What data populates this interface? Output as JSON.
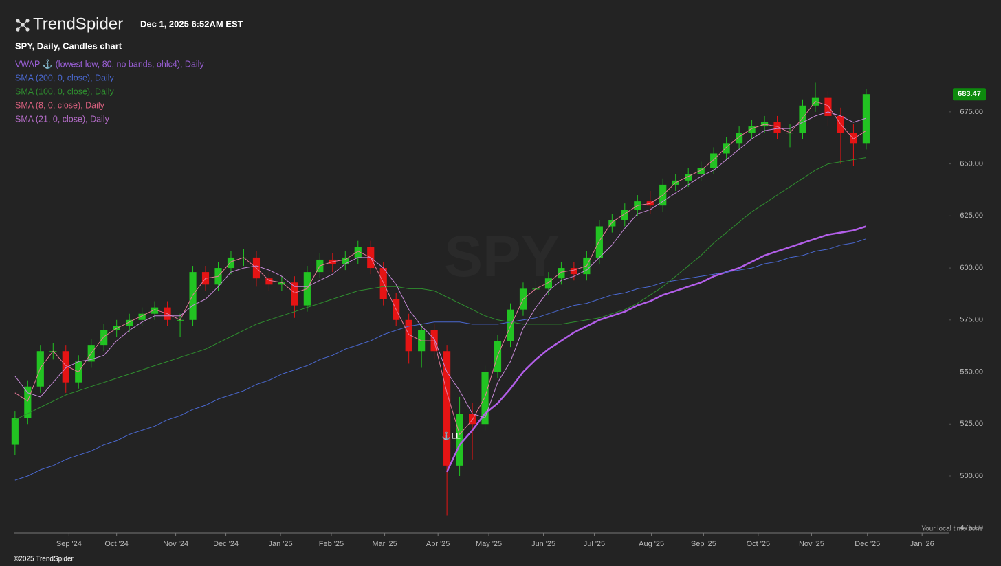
{
  "header": {
    "logo": "TrendSpider",
    "timestamp": "Dec 1, 2025 6:52AM EST"
  },
  "footer": {
    "timezone_note": "Your local time zone",
    "copyright": "©2025 TrendSpider"
  },
  "chart_data": {
    "type": "candlestick",
    "title": "SPY, Daily, Candles chart",
    "watermark": "SPY",
    "categories": [
      null,
      null,
      null,
      null,
      null,
      null,
      null,
      null,
      null,
      null,
      null,
      null,
      null,
      null,
      null,
      null,
      null,
      null,
      null,
      null,
      null,
      null,
      null,
      null,
      null,
      null,
      null,
      null,
      null,
      null,
      null,
      null,
      null,
      null,
      null,
      null,
      null,
      null,
      null,
      null,
      null,
      null,
      null,
      null,
      null,
      null,
      null,
      null,
      null,
      null,
      null,
      null,
      null,
      null,
      null,
      null,
      null,
      null,
      null,
      null,
      null,
      null,
      null,
      null,
      null,
      null,
      null,
      null
    ],
    "open": [
      515,
      528,
      543,
      560,
      560,
      545,
      555,
      563,
      570,
      572,
      575,
      578,
      581,
      575,
      575,
      598,
      592,
      600,
      605,
      605,
      595,
      592,
      593,
      582,
      598,
      604,
      602,
      605,
      610,
      600,
      585,
      575,
      560,
      570,
      560,
      505,
      530,
      525,
      550,
      565,
      580,
      590,
      590,
      595,
      600,
      597,
      605,
      620,
      623,
      628,
      632,
      630,
      640,
      642,
      645,
      648,
      655,
      660,
      665,
      668,
      670,
      665,
      665,
      678,
      682,
      673,
      665,
      660
    ],
    "high": [
      531,
      546,
      563,
      564,
      563,
      558,
      566,
      573,
      575,
      578,
      581,
      584,
      584,
      578,
      601,
      601,
      603,
      608,
      609,
      608,
      598,
      596,
      596,
      601,
      607,
      607,
      608,
      613,
      613,
      603,
      588,
      578,
      573,
      573,
      563,
      538,
      535,
      553,
      568,
      583,
      593,
      594,
      598,
      603,
      603,
      608,
      623,
      626,
      631,
      635,
      637,
      643,
      645,
      648,
      651,
      658,
      663,
      668,
      671,
      673,
      673,
      669,
      681,
      689,
      685,
      677,
      669,
      686
    ],
    "low": [
      510,
      525,
      540,
      556,
      540,
      542,
      552,
      560,
      567,
      569,
      572,
      575,
      572,
      567,
      572,
      589,
      589,
      597,
      601,
      591,
      589,
      589,
      576,
      579,
      595,
      598,
      599,
      602,
      597,
      582,
      572,
      554,
      552,
      556,
      481,
      500,
      508,
      522,
      547,
      562,
      577,
      587,
      587,
      592,
      594,
      594,
      602,
      617,
      620,
      625,
      626,
      627,
      637,
      639,
      642,
      645,
      652,
      657,
      662,
      665,
      662,
      658,
      662,
      675,
      668,
      650,
      649,
      657
    ],
    "close": [
      528,
      543,
      560,
      560,
      545,
      555,
      563,
      570,
      572,
      575,
      578,
      581,
      575,
      575,
      598,
      592,
      600,
      605,
      605,
      595,
      592,
      593,
      582,
      598,
      604,
      602,
      605,
      610,
      600,
      585,
      575,
      560,
      570,
      560,
      505,
      530,
      525,
      550,
      565,
      580,
      590,
      590,
      595,
      600,
      597,
      605,
      620,
      623,
      628,
      632,
      630,
      640,
      642,
      645,
      648,
      655,
      660,
      665,
      668,
      670,
      665,
      665,
      678,
      682,
      673,
      665,
      660,
      683.47
    ],
    "up_color": "#22c322",
    "down_color": "#e51414",
    "last_price_color": "#0d8a0d",
    "series": [
      {
        "name": "VWAP ⚓ (lowest low, 80, no bands, ohlc4), Daily",
        "color": "#b25ee8",
        "legend_color": "#9a5fd6",
        "line_width": 2.5,
        "values": [
          null,
          null,
          null,
          null,
          null,
          null,
          null,
          null,
          null,
          null,
          null,
          null,
          null,
          null,
          null,
          null,
          null,
          null,
          null,
          null,
          null,
          null,
          null,
          null,
          null,
          null,
          null,
          null,
          null,
          null,
          null,
          null,
          null,
          null,
          502,
          515,
          522,
          530,
          535,
          542,
          550,
          556,
          561,
          565,
          569,
          572,
          575,
          577,
          579,
          582,
          584,
          587,
          589,
          591,
          593,
          596,
          598,
          600,
          603,
          606,
          608,
          610,
          612,
          614,
          616,
          617,
          618,
          620
        ]
      },
      {
        "name": "SMA (200, 0, close), Daily",
        "color": "#4a68d0",
        "legend_color": "#4a68d0",
        "line_width": 1,
        "values": [
          498,
          500,
          503,
          505,
          508,
          510,
          512,
          515,
          517,
          520,
          522,
          524,
          527,
          529,
          532,
          534,
          537,
          539,
          541,
          544,
          546,
          549,
          551,
          553,
          556,
          558,
          561,
          563,
          565,
          568,
          570,
          572,
          573,
          574,
          574,
          574,
          573,
          573,
          573,
          574,
          575,
          576,
          578,
          580,
          582,
          583,
          585,
          587,
          588,
          590,
          591,
          593,
          594,
          595,
          596,
          597,
          598,
          599,
          600,
          602,
          603,
          605,
          606,
          608,
          609,
          611,
          612,
          614
        ]
      },
      {
        "name": "SMA (100, 0, close), Daily",
        "color": "#2f8f2f",
        "legend_color": "#2f8f2f",
        "line_width": 1,
        "values": [
          527,
          530,
          533,
          536,
          539,
          541,
          543,
          545,
          547,
          549,
          551,
          553,
          555,
          557,
          559,
          561,
          564,
          567,
          570,
          573,
          575,
          577,
          579,
          581,
          583,
          585,
          587,
          589,
          590,
          591,
          591,
          590,
          590,
          589,
          586,
          583,
          580,
          577,
          575,
          574,
          573,
          573,
          573,
          573,
          574,
          575,
          576,
          578,
          580,
          583,
          587,
          591,
          596,
          601,
          606,
          612,
          617,
          622,
          627,
          631,
          635,
          639,
          643,
          647,
          650,
          651,
          652,
          653
        ]
      },
      {
        "name": "SMA (8, 0, close), Daily",
        "color": "#e8799a",
        "legend_color": "#d9607f",
        "line_width": 1,
        "values": [
          540,
          536,
          552,
          560,
          553,
          550,
          559,
          567,
          571,
          574,
          577,
          580,
          578,
          575,
          587,
          595,
          596,
          603,
          605,
          600,
          594,
          593,
          588,
          590,
          601,
          603,
          604,
          608,
          605,
          593,
          580,
          568,
          565,
          565,
          540,
          520,
          527,
          538,
          558,
          572,
          585,
          590,
          593,
          598,
          599,
          601,
          613,
          622,
          626,
          630,
          631,
          635,
          641,
          644,
          647,
          652,
          658,
          663,
          667,
          669,
          668,
          665,
          672,
          680,
          678,
          669,
          662,
          666
        ]
      },
      {
        "name": "SMA (21, 0, close), Daily",
        "color": "#c68ad8",
        "legend_color": "#b46cc8",
        "line_width": 1,
        "values": [
          548,
          540,
          538,
          545,
          552,
          555,
          556,
          558,
          565,
          570,
          574,
          577,
          577,
          577,
          582,
          585,
          591,
          598,
          600,
          601,
          599,
          596,
          591,
          591,
          594,
          597,
          602,
          605,
          605,
          600,
          592,
          580,
          572,
          566,
          550,
          541,
          530,
          528,
          545,
          555,
          571,
          581,
          589,
          594,
          596,
          599,
          605,
          611,
          619,
          626,
          628,
          632,
          636,
          640,
          644,
          647,
          652,
          657,
          662,
          666,
          667,
          667,
          670,
          673,
          675,
          673,
          670,
          672
        ]
      }
    ],
    "annotations": [
      {
        "text": "⚓LL",
        "x": 33.6,
        "y": 519
      }
    ],
    "xlim": [
      -0.1,
      73.5
    ],
    "xticks": [
      {
        "value": 4.25,
        "label": "Sep '24"
      },
      {
        "value": 8.0,
        "label": "Oct '24"
      },
      {
        "value": 12.65,
        "label": "Nov '24"
      },
      {
        "value": 16.6,
        "label": "Dec '24"
      },
      {
        "value": 20.9,
        "label": "Jan '25"
      },
      {
        "value": 24.9,
        "label": "Feb '25"
      },
      {
        "value": 29.1,
        "label": "Mar '25"
      },
      {
        "value": 33.3,
        "label": "Apr '25"
      },
      {
        "value": 37.3,
        "label": "May '25"
      },
      {
        "value": 41.6,
        "label": "Jun '25"
      },
      {
        "value": 45.6,
        "label": "Jul '25"
      },
      {
        "value": 50.1,
        "label": "Aug '25"
      },
      {
        "value": 54.2,
        "label": "Sep '25"
      },
      {
        "value": 58.5,
        "label": "Oct '25"
      },
      {
        "value": 62.7,
        "label": "Nov '25"
      },
      {
        "value": 67.1,
        "label": "Dec '25"
      },
      {
        "value": 71.4,
        "label": "Jan '26"
      }
    ],
    "ylim": [
      472.6,
      687.5
    ],
    "yticks": [
      {
        "value": 475,
        "label": "475.00"
      },
      {
        "value": 500,
        "label": "500.00"
      },
      {
        "value": 525,
        "label": "525.00"
      },
      {
        "value": 550,
        "label": "550.00"
      },
      {
        "value": 575,
        "label": "575.00"
      },
      {
        "value": 600,
        "label": "600.00"
      },
      {
        "value": 625,
        "label": "625.00"
      },
      {
        "value": 650,
        "label": "650.00"
      },
      {
        "value": 675,
        "label": "675.00"
      }
    ]
  }
}
